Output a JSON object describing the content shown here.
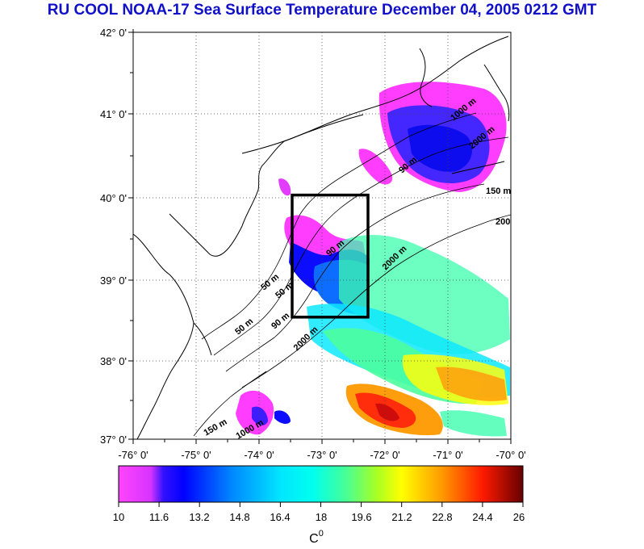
{
  "title": "RU COOL  NOAA-17 Sea Surface Temperature December 04, 2005 0212 GMT",
  "map": {
    "lat_labels": [
      "42° 0'",
      "41° 0'",
      "40° 0'",
      "39° 0'",
      "38° 0'",
      "37° 0'"
    ],
    "lon_labels": [
      "-76° 0'",
      "-75° 0'",
      "-74° 0'",
      "-73° 0'",
      "-72° 0'",
      "-71° 0'",
      "-70° 0'"
    ],
    "lat_range": [
      37,
      42
    ],
    "lon_range": [
      -76,
      -70
    ],
    "grid": "dotted",
    "box": {
      "lon_min": -73.5,
      "lon_max": -72.5,
      "lat_min": 38.5,
      "lat_max": 40.0
    },
    "contour_labels": [
      "50 m",
      "50 m",
      "50 m",
      "90 m",
      "90 m",
      "90 m",
      "150 m",
      "150 m",
      "1000 m",
      "1000 m",
      "2000 m",
      "2000 m",
      "2000 m",
      "200"
    ]
  },
  "colorbar": {
    "min": 10,
    "max": 26,
    "tick_labels": [
      "10",
      "11.6",
      "13.2",
      "14.8",
      "16.4",
      "18",
      "19.6",
      "21.2",
      "22.8",
      "24.4",
      "26"
    ],
    "unit_base": "C",
    "unit_sup": "0",
    "colors": [
      "#ff33ff",
      "#d633ff",
      "#0000ff",
      "#0066ff",
      "#00c8ff",
      "#00ffff",
      "#33ffaa",
      "#99ff33",
      "#ffff00",
      "#ff9900",
      "#ff3300",
      "#cc0000",
      "#660000"
    ]
  }
}
